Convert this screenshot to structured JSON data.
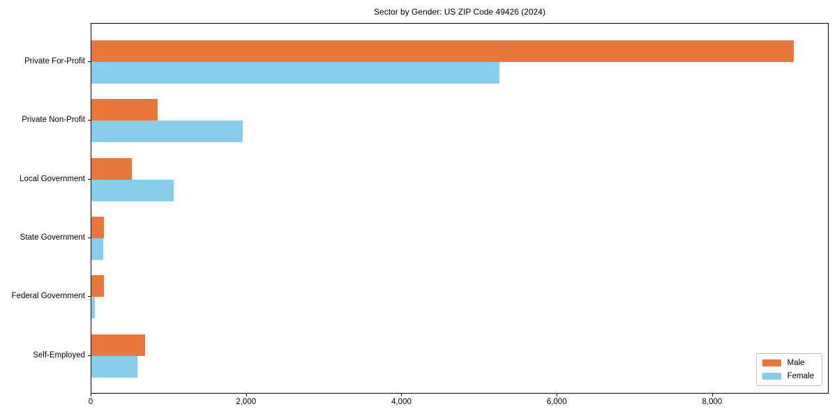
{
  "title": "Sector by Gender: US ZIP Code 49426 (2024)",
  "colors": {
    "male_bar": "#e8773c",
    "female_bar": "#87ceeb",
    "axis": "#000000",
    "legend_border": "#bfbfbf",
    "background": "#ffffff"
  },
  "chart_data": {
    "type": "bar",
    "orientation": "horizontal",
    "title": "Sector by Gender: US ZIP Code 49426 (2024)",
    "xlabel": "",
    "ylabel": "",
    "categories": [
      "Private For-Profit",
      "Private Non-Profit",
      "Local Government",
      "State Government",
      "Federal Government",
      "Self-Employed"
    ],
    "series": [
      {
        "name": "Male",
        "color": "#e8773c",
        "values": [
          9040,
          850,
          520,
          165,
          160,
          690
        ]
      },
      {
        "name": "Female",
        "color": "#87ceeb",
        "values": [
          5250,
          1950,
          1060,
          150,
          45,
          590
        ]
      }
    ],
    "xlim": [
      0,
      9500
    ],
    "xticks": [
      0,
      2000,
      4000,
      6000,
      8000
    ],
    "xtick_labels": [
      "0",
      "2,000",
      "4,000",
      "6,000",
      "8,000"
    ],
    "grid": false,
    "legend_position": "lower right",
    "legend_entries": [
      "Male",
      "Female"
    ]
  }
}
